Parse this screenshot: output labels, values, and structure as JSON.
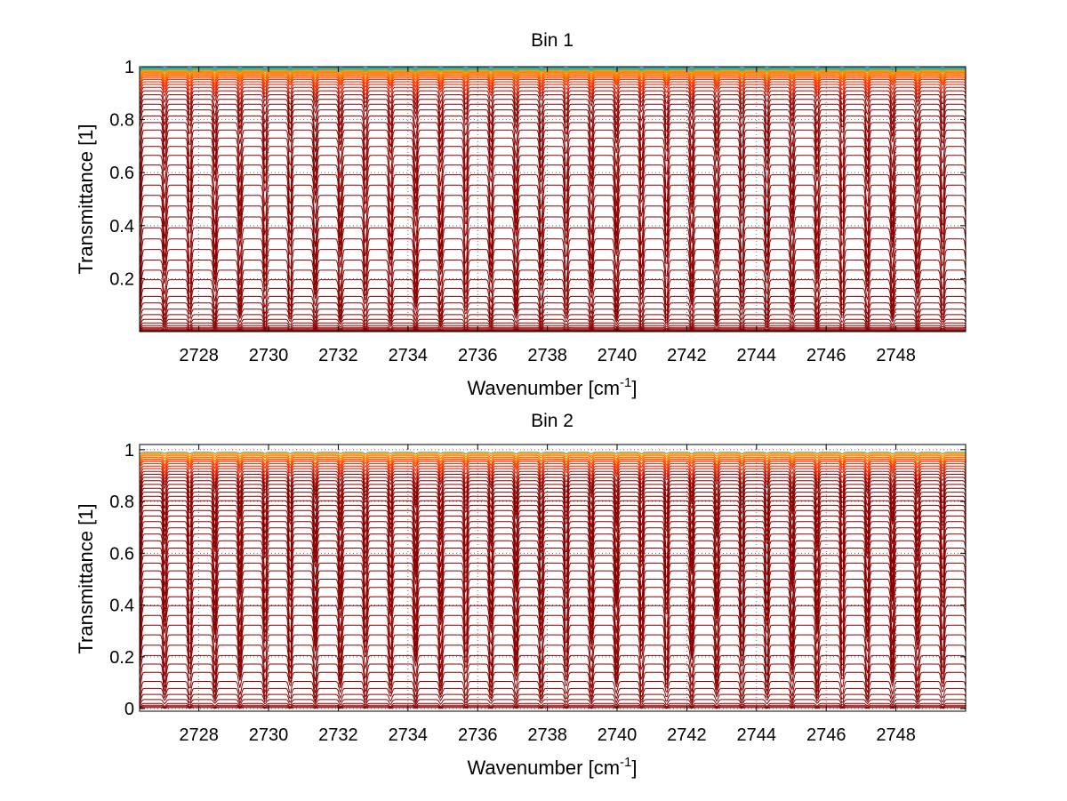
{
  "chart_data": [
    {
      "type": "line",
      "title": "Bin 1",
      "xlabel": {
        "base": "Wavenumber [cm",
        "sup": "-1",
        "close": "]"
      },
      "ylabel": "Transmittance [1]",
      "xlim": [
        2726.3,
        2750
      ],
      "ylim": [
        0,
        1
      ],
      "x_ticks": [
        2728,
        2730,
        2732,
        2734,
        2736,
        2738,
        2740,
        2742,
        2744,
        2746,
        2748
      ],
      "x_tick_labels": [
        "2728",
        "2730",
        "2732",
        "2734",
        "2736",
        "2738",
        "2740",
        "2742",
        "2744",
        "2746",
        "2748"
      ],
      "y_ticks": [
        0.2,
        0.4,
        0.6,
        0.8,
        1
      ],
      "y_tick_labels": [
        "0.2",
        "0.4",
        "0.6",
        "0.8",
        "1"
      ],
      "grid": true,
      "grid_style": "dotted",
      "line_peak_spacing_cm1": 0.72,
      "series_baselines": [
        0.002,
        0.004,
        0.007,
        0.011,
        0.016,
        0.023,
        0.033,
        0.046,
        0.064,
        0.085,
        0.108,
        0.133,
        0.163,
        0.196,
        0.232,
        0.27,
        0.31,
        0.35,
        0.392,
        0.433,
        0.474,
        0.514,
        0.553,
        0.592,
        0.629,
        0.665,
        0.699,
        0.731,
        0.761,
        0.789,
        0.814,
        0.837,
        0.858,
        0.877,
        0.894,
        0.909,
        0.922,
        0.933,
        0.943,
        0.952,
        0.96,
        0.967,
        0.973,
        0.978,
        0.982,
        0.986,
        0.989,
        0.992,
        0.994,
        0.996
      ],
      "colors": {
        "deep": "#8b0000",
        "mid": "#ff2a00",
        "high": "#ff9900",
        "top": "#00b0d0"
      }
    },
    {
      "type": "line",
      "title": "Bin 2",
      "xlabel": {
        "base": "Wavenumber [cm",
        "sup": "-1",
        "close": "]"
      },
      "ylabel": "Transmittance [1]",
      "xlim": [
        2726.3,
        2750
      ],
      "ylim": [
        -0.01,
        1.02
      ],
      "x_ticks": [
        2728,
        2730,
        2732,
        2734,
        2736,
        2738,
        2740,
        2742,
        2744,
        2746,
        2748
      ],
      "x_tick_labels": [
        "2728",
        "2730",
        "2732",
        "2734",
        "2736",
        "2738",
        "2740",
        "2742",
        "2744",
        "2746",
        "2748"
      ],
      "y_ticks": [
        0,
        0.2,
        0.4,
        0.6,
        0.8,
        1
      ],
      "y_tick_labels": [
        "0",
        "0.2",
        "0.4",
        "0.6",
        "0.8",
        "1"
      ],
      "grid": true,
      "grid_style": "dotted",
      "line_peak_spacing_cm1": 0.72,
      "series_baselines": [
        0.004,
        0.008,
        0.013,
        0.02,
        0.035,
        0.055,
        0.078,
        0.105,
        0.14,
        0.172,
        0.205,
        0.245,
        0.285,
        0.322,
        0.36,
        0.398,
        0.432,
        0.468,
        0.5,
        0.532,
        0.562,
        0.592,
        0.62,
        0.648,
        0.674,
        0.698,
        0.722,
        0.744,
        0.765,
        0.785,
        0.803,
        0.82,
        0.836,
        0.851,
        0.866,
        0.88,
        0.893,
        0.905,
        0.916,
        0.927,
        0.937,
        0.946,
        0.955,
        0.963,
        0.971,
        0.978,
        0.984,
        0.99
      ],
      "colors": {
        "deep": "#8b0000",
        "mid": "#ff2a00",
        "high": "#ff9900",
        "top": "#00b0d0"
      }
    }
  ]
}
